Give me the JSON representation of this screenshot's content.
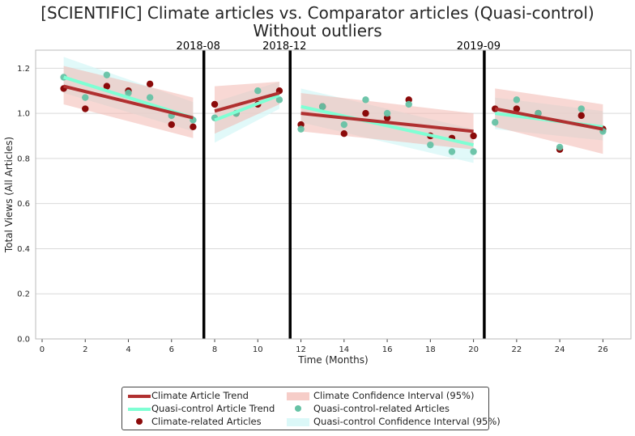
{
  "title_line1": "[SCIENTIFIC] Climate articles vs. Comparator articles (Quasi-control)",
  "title_line2": "Without outliers",
  "colors": {
    "climate_point": "#8b0a0a",
    "climate_line": "#b03030",
    "climate_ci": "#f2b8b0",
    "control_point": "#66c2a5",
    "control_line": "#7fffd4",
    "control_ci": "#d7f7f7",
    "grid": "#d9d9d9",
    "breakpoint": "#000000"
  },
  "legend": {
    "climate_trend": "Climate Article Trend",
    "control_trend": "Quasi-control Article Trend",
    "climate_points": "Climate-related Articles",
    "climate_ci": "Climate Confidence Interval (95%)",
    "control_points": "Quasi-control-related Articles",
    "control_ci": "Quasi-control Confidence Interval (95%)"
  },
  "chart_data": {
    "type": "scatter",
    "xlabel": "Time (Months)",
    "ylabel": "Total Views (All Articles)",
    "xlim": [
      -0.3,
      27.3
    ],
    "ylim": [
      0,
      1.28
    ],
    "xticks": [
      "0",
      "2",
      "4",
      "6",
      "8",
      "10",
      "12",
      "14",
      "16",
      "18",
      "20",
      "22",
      "24",
      "26"
    ],
    "yticks": [
      "0.0",
      "0.2",
      "0.4",
      "0.6",
      "0.8",
      "1.0",
      "1.2"
    ],
    "grid": true,
    "legend_position": "below",
    "breakpoints": [
      {
        "x": 7.5,
        "label": "2018-08"
      },
      {
        "x": 11.5,
        "label": "2018-12"
      },
      {
        "x": 20.5,
        "label": "2019-09"
      }
    ],
    "series": [
      {
        "name": "Climate-related Articles",
        "kind": "points",
        "x": [
          1,
          2,
          3,
          4,
          5,
          6,
          7,
          8,
          9,
          10,
          11,
          12,
          13,
          14,
          15,
          16,
          17,
          18,
          19,
          20,
          21,
          22,
          23,
          24,
          25,
          26
        ],
        "y": [
          1.11,
          1.02,
          1.12,
          1.1,
          1.13,
          0.95,
          0.94,
          1.04,
          1.0,
          1.04,
          1.1,
          0.95,
          1.03,
          0.91,
          1.0,
          0.98,
          1.06,
          0.9,
          0.89,
          0.9,
          1.02,
          1.02,
          1.0,
          0.84,
          0.99,
          0.93
        ]
      },
      {
        "name": "Quasi-control-related Articles",
        "kind": "points",
        "x": [
          1,
          2,
          3,
          4,
          5,
          6,
          7,
          8,
          9,
          10,
          11,
          12,
          13,
          14,
          15,
          16,
          17,
          18,
          19,
          20,
          21,
          22,
          23,
          24,
          25,
          26
        ],
        "y": [
          1.16,
          1.07,
          1.17,
          1.09,
          1.07,
          0.99,
          0.97,
          0.98,
          1.0,
          1.1,
          1.06,
          0.93,
          1.03,
          0.95,
          1.06,
          1.0,
          1.04,
          0.86,
          0.83,
          0.83,
          0.96,
          1.06,
          1.0,
          0.85,
          1.02,
          0.92
        ]
      },
      {
        "name": "Climate Article Trend",
        "kind": "trend",
        "segments": [
          {
            "x": [
              1,
              7
            ],
            "y": [
              1.12,
              0.98
            ]
          },
          {
            "x": [
              8,
              11
            ],
            "y": [
              1.01,
              1.09
            ]
          },
          {
            "x": [
              12,
              20
            ],
            "y": [
              1.0,
              0.92
            ]
          },
          {
            "x": [
              21,
              26
            ],
            "y": [
              1.02,
              0.93
            ]
          }
        ]
      },
      {
        "name": "Quasi-control Article Trend",
        "kind": "trend",
        "segments": [
          {
            "x": [
              1,
              7
            ],
            "y": [
              1.16,
              0.98
            ]
          },
          {
            "x": [
              8,
              11
            ],
            "y": [
              0.97,
              1.08
            ]
          },
          {
            "x": [
              12,
              20
            ],
            "y": [
              1.03,
              0.86
            ]
          },
          {
            "x": [
              21,
              26
            ],
            "y": [
              1.0,
              0.94
            ]
          }
        ]
      },
      {
        "name": "Climate Confidence Interval (95%)",
        "kind": "band",
        "segments": [
          {
            "x": [
              1,
              7
            ],
            "lower": [
              1.04,
              0.89
            ],
            "upper": [
              1.21,
              1.07
            ]
          },
          {
            "x": [
              8,
              11
            ],
            "lower": [
              0.91,
              1.04
            ],
            "upper": [
              1.12,
              1.14
            ]
          },
          {
            "x": [
              12,
              20
            ],
            "lower": [
              0.92,
              0.84
            ],
            "upper": [
              1.09,
              1.0
            ]
          },
          {
            "x": [
              21,
              26
            ],
            "lower": [
              0.94,
              0.82
            ],
            "upper": [
              1.11,
              1.04
            ]
          }
        ]
      },
      {
        "name": "Quasi-control Confidence Interval (95%)",
        "kind": "band",
        "segments": [
          {
            "x": [
              1,
              7
            ],
            "lower": [
              1.09,
              0.92
            ],
            "upper": [
              1.25,
              1.05
            ]
          },
          {
            "x": [
              8,
              11
            ],
            "lower": [
              0.87,
              1.02
            ],
            "upper": [
              1.05,
              1.14
            ]
          },
          {
            "x": [
              12,
              20
            ],
            "lower": [
              0.96,
              0.78
            ],
            "upper": [
              1.11,
              0.93
            ]
          },
          {
            "x": [
              21,
              26
            ],
            "lower": [
              0.93,
              0.88
            ],
            "upper": [
              1.07,
              1.01
            ]
          }
        ]
      }
    ]
  }
}
